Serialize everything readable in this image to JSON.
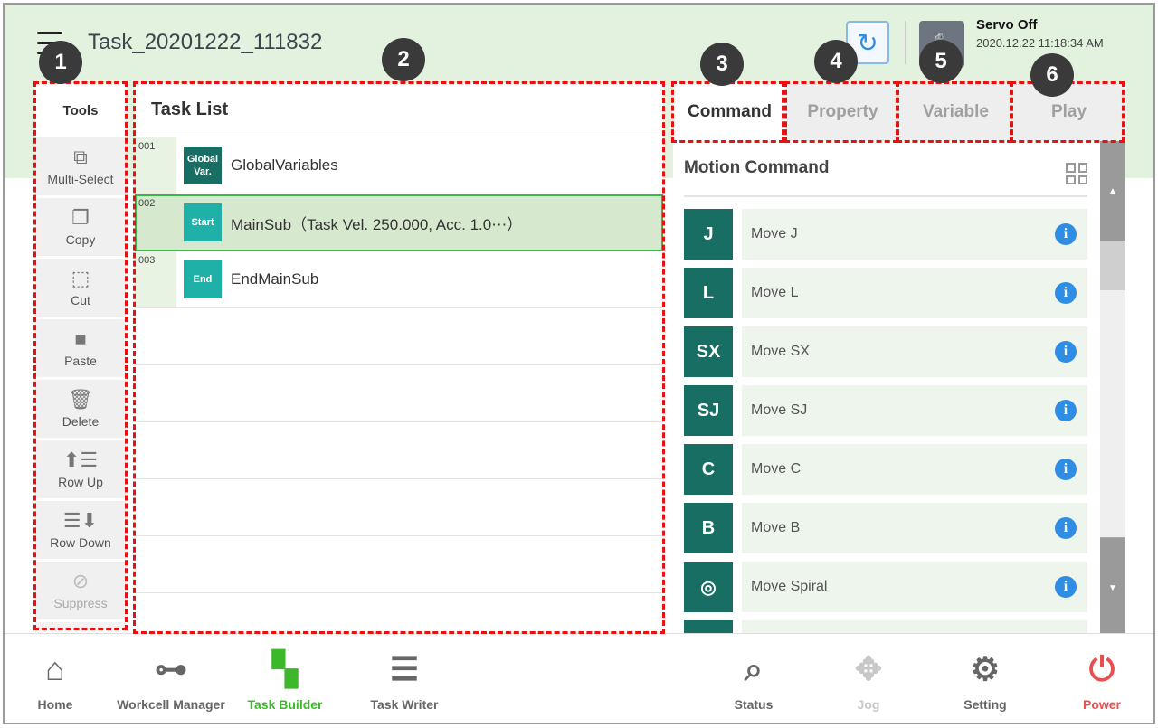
{
  "header": {
    "title": "Task_20201222_111832",
    "servo_status": "Servo Off",
    "datetime": "2020.12.22 11:18:34 AM",
    "menu_icon": "hamburger-icon",
    "sync_icon": "refresh-icon",
    "robot_icon": "robot-icon"
  },
  "badges": [
    "1",
    "2",
    "3",
    "4",
    "5",
    "6"
  ],
  "tools": {
    "title": "Tools",
    "items": [
      {
        "label": "Multi-Select",
        "icon": "multi-select-icon",
        "glyph": "⧉",
        "enabled": true
      },
      {
        "label": "Copy",
        "icon": "copy-icon",
        "glyph": "❐",
        "enabled": true
      },
      {
        "label": "Cut",
        "icon": "cut-icon",
        "glyph": "⬚",
        "enabled": true
      },
      {
        "label": "Paste",
        "icon": "paste-icon",
        "glyph": "■",
        "enabled": true
      },
      {
        "label": "Delete",
        "icon": "trash-icon",
        "glyph": "🗑",
        "enabled": true
      },
      {
        "label": "Row Up",
        "icon": "row-up-icon",
        "glyph": "⬆☰",
        "enabled": true
      },
      {
        "label": "Row Down",
        "icon": "row-down-icon",
        "glyph": "☰⬇",
        "enabled": true
      },
      {
        "label": "Suppress",
        "icon": "suppress-icon",
        "glyph": "⊘",
        "enabled": false
      }
    ]
  },
  "task_list": {
    "title": "Task List",
    "rows": [
      {
        "num": "001",
        "block": "Global Var.",
        "color": "#186e63",
        "label": "GlobalVariables"
      },
      {
        "num": "002",
        "block": "Start",
        "color": "#1fb0a8",
        "label": "MainSub（Task Vel. 250.000, Acc. 1.0⋯）",
        "selected": true
      },
      {
        "num": "003",
        "block": "End",
        "color": "#1fb0a8",
        "label": "EndMainSub"
      }
    ]
  },
  "tabs": [
    {
      "label": "Command",
      "active": true
    },
    {
      "label": "Property"
    },
    {
      "label": "Variable"
    },
    {
      "label": "Play"
    }
  ],
  "command_panel": {
    "title": "Motion Command",
    "commands": [
      {
        "icon": "J",
        "label": "Move J"
      },
      {
        "icon": "L",
        "label": "Move L"
      },
      {
        "icon": "SX",
        "label": "Move SX"
      },
      {
        "icon": "SJ",
        "label": "Move SJ"
      },
      {
        "icon": "C",
        "label": "Move C"
      },
      {
        "icon": "B",
        "label": "Move B"
      },
      {
        "icon": "◎",
        "label": "Move Spiral"
      },
      {
        "icon": "",
        "label": ""
      }
    ]
  },
  "nav": {
    "items": [
      {
        "label": "Home",
        "glyph": "⌂",
        "icon": "home-icon",
        "color": "#666"
      },
      {
        "label": "Workcell Manager",
        "glyph": "⊶",
        "icon": "workcell-icon",
        "color": "#666"
      },
      {
        "label": "Task Builder",
        "glyph": "▚",
        "icon": "task-builder-icon",
        "color": "#3cb82a"
      },
      {
        "label": "Task Writer",
        "glyph": "☰",
        "icon": "task-writer-icon",
        "color": "#666"
      },
      {
        "label": "Status",
        "glyph": "⌕",
        "icon": "status-icon",
        "color": "#666"
      },
      {
        "label": "Jog",
        "glyph": "✥",
        "icon": "jog-icon",
        "color": "#c8c8c8"
      },
      {
        "label": "Setting",
        "glyph": "⚙",
        "icon": "gear-icon",
        "color": "#666"
      },
      {
        "label": "Power",
        "glyph": "⏻",
        "icon": "power-icon",
        "color": "#e85050"
      }
    ]
  },
  "colors": {
    "header_bg": "#e3f1df",
    "accent_green": "#3cb84a",
    "command_teal": "#186e63",
    "highlight_red": "#e81010",
    "info_blue": "#2f8de4"
  }
}
